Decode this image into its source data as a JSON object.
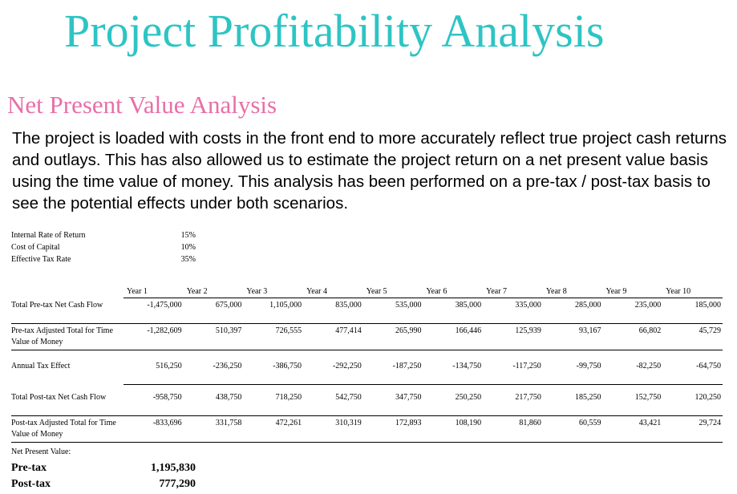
{
  "title": "Project Profitability Analysis",
  "subtitle": "Net Present Value Analysis",
  "paragraph": "The project is loaded with costs in the front end to more accurately reflect true project cash returns and outlays.  This has also allowed us to estimate the project return on a net present value basis using the time value of money.  This analysis has been performed on a pre-tax / post-tax basis to see the potential effects under both scenarios.",
  "parameters": [
    {
      "label": "Internal Rate of Return",
      "value": "15%"
    },
    {
      "label": "Cost of Capital",
      "value": "10%"
    },
    {
      "label": "Effective Tax Rate",
      "value": "35%"
    }
  ],
  "years": [
    "Year 1",
    "Year 2",
    "Year 3",
    "Year 4",
    "Year 5",
    "Year 6",
    "Year 7",
    "Year 8",
    "Year 9",
    "Year 10"
  ],
  "rows": [
    {
      "label": "Total Pre-tax Net Cash Flow",
      "values": [
        "-1,475,000",
        "675,000",
        "1,105,000",
        "835,000",
        "535,000",
        "385,000",
        "335,000",
        "285,000",
        "235,000",
        "185,000"
      ]
    },
    {
      "label": "Pre-tax Adjusted Total for Time Value of Money",
      "values": [
        "-1,282,609",
        "510,397",
        "726,555",
        "477,414",
        "265,990",
        "166,446",
        "125,939",
        "93,167",
        "66,802",
        "45,729"
      ]
    },
    {
      "label": "Annual Tax Effect",
      "values": [
        "516,250",
        "-236,250",
        "-386,750",
        "-292,250",
        "-187,250",
        "-134,750",
        "-117,250",
        "-99,750",
        "-82,250",
        "-64,750"
      ]
    },
    {
      "label": "Total Post-tax Net Cash Flow",
      "values": [
        "-958,750",
        "438,750",
        "718,250",
        "542,750",
        "347,750",
        "250,250",
        "217,750",
        "185,250",
        "152,750",
        "120,250"
      ]
    },
    {
      "label": "Post-tax Adjusted Total for Time Value of Money",
      "values": [
        "-833,696",
        "331,758",
        "472,261",
        "310,319",
        "172,893",
        "108,190",
        "81,860",
        "60,559",
        "43,421",
        "29,724"
      ]
    }
  ],
  "npv": {
    "label": "Net Present Value:",
    "pretax_label": "Pre-tax",
    "pretax_value": "1,195,830",
    "posttax_label": "Post-tax",
    "posttax_value": "777,290"
  }
}
